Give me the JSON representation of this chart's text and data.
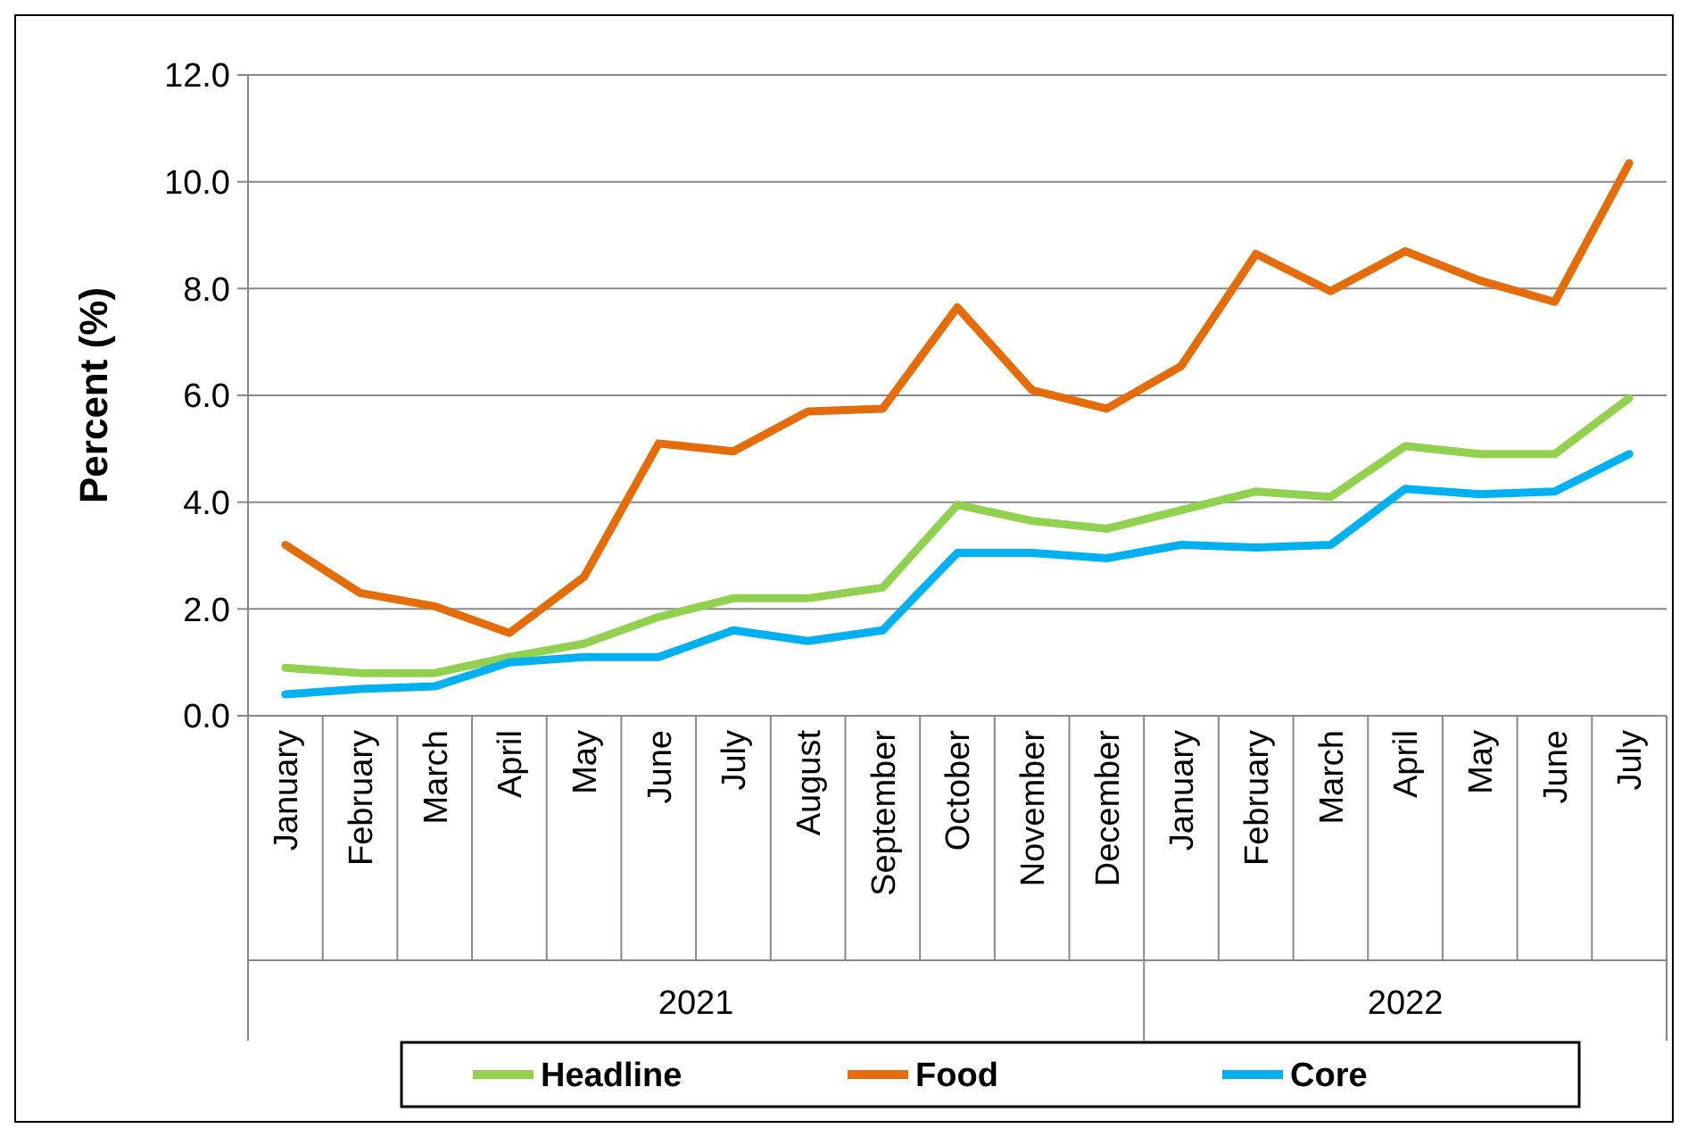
{
  "chart_data": {
    "type": "line",
    "ylabel": "Percent (%)",
    "categories": [
      "January",
      "February",
      "March",
      "April",
      "May",
      "June",
      "July",
      "August",
      "September",
      "October",
      "November",
      "December",
      "January",
      "February",
      "March",
      "April",
      "May",
      "June",
      "July"
    ],
    "annotations": [
      "2021",
      "2022"
    ],
    "series": [
      {
        "name": "Headline",
        "color": "#92d050",
        "values": [
          0.9,
          0.8,
          0.8,
          1.1,
          1.35,
          1.85,
          2.2,
          2.2,
          2.4,
          3.95,
          3.65,
          3.5,
          3.85,
          4.2,
          4.1,
          5.05,
          4.9,
          4.9,
          5.95
        ]
      },
      {
        "name": "Food",
        "color": "#e46c0a",
        "values": [
          3.2,
          2.3,
          2.05,
          1.55,
          2.6,
          5.1,
          4.95,
          5.7,
          5.75,
          7.65,
          6.1,
          5.75,
          6.55,
          8.65,
          7.95,
          8.7,
          8.15,
          7.75,
          10.35
        ]
      },
      {
        "name": "Core",
        "color": "#00b0f0",
        "values": [
          0.4,
          0.5,
          0.55,
          1.0,
          1.1,
          1.1,
          1.6,
          1.4,
          1.6,
          3.05,
          3.05,
          2.95,
          3.2,
          3.15,
          3.2,
          4.25,
          4.15,
          4.2,
          4.9
        ]
      }
    ],
    "ylim": [
      0,
      12
    ],
    "yticks": [
      {
        "value": 0,
        "label": "0.0"
      },
      {
        "value": 2,
        "label": "2.0"
      },
      {
        "value": 4,
        "label": "4.0"
      },
      {
        "value": 6,
        "label": "6.0"
      },
      {
        "value": 8,
        "label": "8.0"
      },
      {
        "value": 10,
        "label": "10.0"
      },
      {
        "value": 12,
        "label": "12.0"
      }
    ],
    "grid": "y",
    "legend": "bottom",
    "marker": "none",
    "line_style": "solid"
  }
}
